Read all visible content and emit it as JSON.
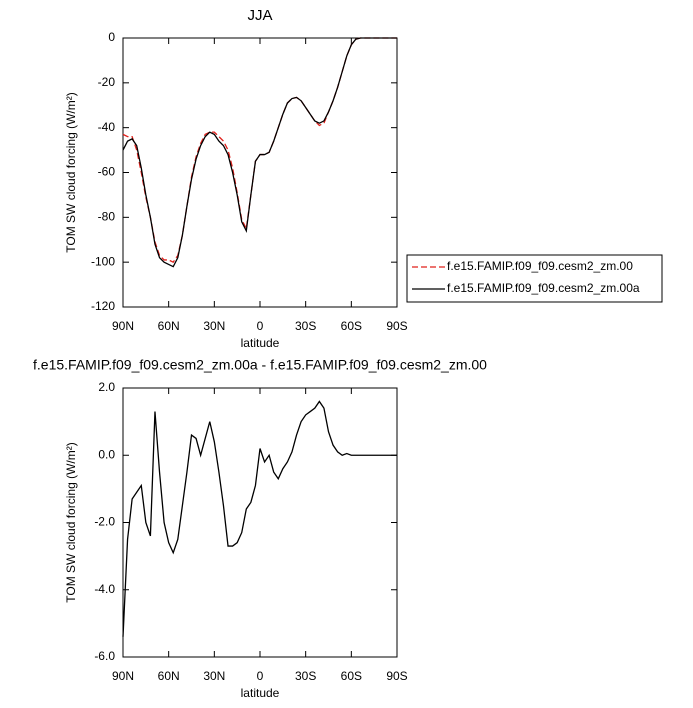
{
  "chart_data": [
    {
      "type": "line",
      "title": "JJA",
      "xlabel": "latitude",
      "ylabel": "TOM SW cloud forcing (W/m²)",
      "x": [
        90,
        87,
        84,
        81,
        78,
        75,
        72,
        69,
        66,
        63,
        60,
        57,
        54,
        51,
        48,
        45,
        42,
        39,
        36,
        33,
        30,
        27,
        24,
        21,
        18,
        15,
        12,
        9,
        6,
        3,
        0,
        -3,
        -6,
        -9,
        -12,
        -15,
        -18,
        -21,
        -24,
        -27,
        -30,
        -33,
        -36,
        -39,
        -42,
        -45,
        -48,
        -51,
        -54,
        -57,
        -60,
        -63,
        -66,
        -69,
        -72,
        -75,
        -78,
        -81,
        -84,
        -87,
        -90
      ],
      "series": [
        {
          "name": "f.e15.FAMIP.f09_f09.cesm2_zm.00",
          "color": "#e0201b",
          "line_style": "dashed",
          "values": [
            -43,
            -44,
            -44,
            -50,
            -60,
            -71,
            -80,
            -91,
            -97,
            -99,
            -99,
            -100,
            -97,
            -88,
            -75,
            -62,
            -53,
            -47,
            -43,
            -42,
            -42,
            -44,
            -46,
            -50,
            -58,
            -69,
            -81,
            -85,
            -70,
            -55,
            -52,
            -52,
            -51,
            -46,
            -40,
            -34,
            -29,
            -27,
            -26.5,
            -28,
            -31,
            -34,
            -37,
            -39,
            -38,
            -33,
            -28,
            -22,
            -15,
            -8,
            -3,
            -0.5,
            0,
            0,
            0,
            0,
            0,
            0,
            0,
            0,
            0
          ]
        },
        {
          "name": "f.e15.FAMIP.f09_f09.cesm2_zm.00a",
          "color": "#000000",
          "line_style": "solid",
          "values": [
            -50,
            -46,
            -45,
            -48,
            -58,
            -70,
            -80,
            -92,
            -98,
            -100,
            -101,
            -102,
            -98,
            -88,
            -75,
            -63,
            -54,
            -48,
            -44,
            -42,
            -43,
            -46,
            -48,
            -52,
            -60,
            -70,
            -82,
            -86,
            -70,
            -55,
            -52,
            -52,
            -51,
            -46,
            -40,
            -34,
            -29,
            -27,
            -26.5,
            -28,
            -31,
            -34,
            -37,
            -38,
            -37,
            -33,
            -28,
            -22,
            -15,
            -8,
            -3,
            -0.5,
            0,
            0,
            0,
            0,
            0,
            0,
            0,
            0,
            0
          ]
        }
      ],
      "xlim": [
        90,
        -90
      ],
      "xticks": [
        {
          "value": 90,
          "label": "90N"
        },
        {
          "value": 60,
          "label": "60N"
        },
        {
          "value": 30,
          "label": "30N"
        },
        0,
        {
          "value": -30,
          "label": "30S"
        },
        {
          "value": -60,
          "label": "60S"
        },
        {
          "value": -90,
          "label": "90S"
        }
      ],
      "ylim": [
        -120,
        0
      ],
      "yticks": [
        0,
        -20,
        -40,
        -60,
        -80,
        -100,
        -120
      ],
      "legend": "right"
    },
    {
      "type": "line",
      "title": "f.e15.FAMIP.f09_f09.cesm2_zm.00a - f.e15.FAMIP.f09_f09.cesm2_zm.00",
      "xlabel": "latitude",
      "ylabel": "TOM SW cloud forcing (W/m²)",
      "x": [
        90,
        87,
        84,
        81,
        78,
        75,
        72,
        69,
        66,
        63,
        60,
        57,
        54,
        51,
        48,
        45,
        42,
        39,
        36,
        33,
        30,
        27,
        24,
        21,
        18,
        15,
        12,
        9,
        6,
        3,
        0,
        -3,
        -6,
        -9,
        -12,
        -15,
        -18,
        -21,
        -24,
        -27,
        -30,
        -33,
        -36,
        -39,
        -42,
        -45,
        -48,
        -51,
        -54,
        -57,
        -60,
        -63,
        -66,
        -69,
        -72,
        -75,
        -78,
        -81,
        -84,
        -87,
        -90
      ],
      "series": [
        {
          "color": "#000000",
          "line_style": "solid",
          "values": [
            -5.4,
            -2.5,
            -1.3,
            -1.1,
            -0.9,
            -2.0,
            -2.4,
            1.3,
            -0.5,
            -2.0,
            -2.6,
            -2.9,
            -2.5,
            -1.5,
            -0.5,
            0.6,
            0.5,
            0.0,
            0.5,
            1.0,
            0.4,
            -0.5,
            -1.5,
            -2.7,
            -2.7,
            -2.6,
            -2.3,
            -1.6,
            -1.4,
            -0.9,
            0.2,
            -0.2,
            0.0,
            -0.5,
            -0.7,
            -0.4,
            -0.2,
            0.1,
            0.6,
            1.0,
            1.2,
            1.3,
            1.4,
            1.6,
            1.4,
            0.7,
            0.3,
            0.1,
            0.0,
            0.05,
            0,
            0,
            0,
            0,
            0,
            0,
            0,
            0,
            0,
            0,
            0
          ]
        }
      ],
      "xlim": [
        90,
        -90
      ],
      "xticks": [
        {
          "value": 90,
          "label": "90N"
        },
        {
          "value": 60,
          "label": "60N"
        },
        {
          "value": 30,
          "label": "30N"
        },
        0,
        {
          "value": -30,
          "label": "30S"
        },
        {
          "value": -60,
          "label": "60S"
        },
        {
          "value": -90,
          "label": "90S"
        }
      ],
      "ylim": [
        -6,
        2
      ],
      "yticks": [
        {
          "value": 2,
          "label": "2.0"
        },
        {
          "value": 0,
          "label": "0.0"
        },
        {
          "value": -2,
          "label": "-2.0"
        },
        {
          "value": -4,
          "label": "-4.0"
        },
        {
          "value": -6,
          "label": "-6.0"
        }
      ]
    }
  ]
}
